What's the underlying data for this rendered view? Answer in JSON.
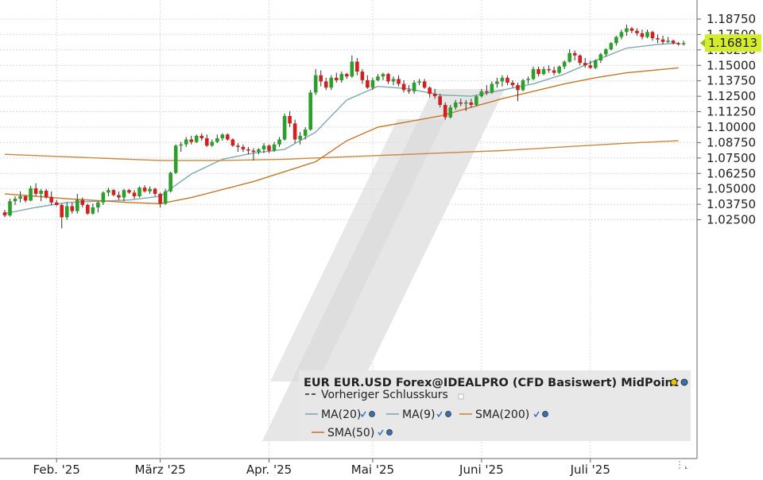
{
  "chart_data": {
    "type": "candlestick",
    "title": "",
    "xlabel": "",
    "ylabel": "",
    "grid": true,
    "legend_placement": "bottom-right",
    "ylim": [
      1.0175,
      1.1925
    ],
    "y_ticks": [
      "1.18750",
      "1.17500",
      "1.16250",
      "1.15000",
      "1.13750",
      "1.12500",
      "1.11250",
      "1.10000",
      "1.08750",
      "1.07500",
      "1.06250",
      "1.05000",
      "1.03750",
      "1.02500"
    ],
    "x_ticks": [
      "Feb. '25",
      "März '25",
      "Apr. '25",
      "Mai '25",
      "Juni '25",
      "Juli '25"
    ],
    "x_tick_bar_index": [
      10,
      30,
      51,
      71,
      92,
      113
    ],
    "last_price_label": "1.16813",
    "legend": {
      "header": "EUR EUR.USD Forex@IDEALPRO (CFD Basiswert) MidPoint",
      "items": [
        "Vorheriger Schlusskurs",
        "MA(20)",
        "MA(9)",
        "SMA(200)",
        "SMA(50)"
      ]
    },
    "ohlc": [
      [
        1.031,
        1.033,
        1.027,
        1.0285
      ],
      [
        1.0285,
        1.042,
        1.0275,
        1.04
      ],
      [
        1.04,
        1.044,
        1.037,
        1.042
      ],
      [
        1.042,
        1.048,
        1.039,
        1.044
      ],
      [
        1.044,
        1.045,
        1.039,
        1.0405
      ],
      [
        1.0405,
        1.0525,
        1.04,
        1.0505
      ],
      [
        1.0505,
        1.0545,
        1.044,
        1.046
      ],
      [
        1.046,
        1.05,
        1.04,
        1.0485
      ],
      [
        1.0485,
        1.05,
        1.042,
        1.0435
      ],
      [
        1.0435,
        1.048,
        1.037,
        1.039
      ],
      [
        1.039,
        1.041,
        1.036,
        1.037
      ],
      [
        1.037,
        1.038,
        1.018,
        1.027
      ],
      [
        1.027,
        1.039,
        1.025,
        1.036
      ],
      [
        1.036,
        1.039,
        1.03,
        1.032
      ],
      [
        1.032,
        1.046,
        1.03,
        1.041
      ],
      [
        1.041,
        1.043,
        1.035,
        1.037
      ],
      [
        1.037,
        1.038,
        1.029,
        1.03
      ],
      [
        1.03,
        1.038,
        1.029,
        1.035
      ],
      [
        1.035,
        1.04,
        1.031,
        1.039
      ],
      [
        1.039,
        1.048,
        1.037,
        1.047
      ],
      [
        1.047,
        1.051,
        1.044,
        1.049
      ],
      [
        1.049,
        1.05,
        1.044,
        1.045
      ],
      [
        1.045,
        1.048,
        1.041,
        1.043
      ],
      [
        1.043,
        1.05,
        1.04,
        1.049
      ],
      [
        1.049,
        1.05,
        1.046,
        1.047
      ],
      [
        1.047,
        1.049,
        1.042,
        1.044
      ],
      [
        1.044,
        1.052,
        1.043,
        1.051
      ],
      [
        1.051,
        1.053,
        1.047,
        1.048
      ],
      [
        1.048,
        1.052,
        1.046,
        1.05
      ],
      [
        1.05,
        1.051,
        1.044,
        1.046
      ],
      [
        1.046,
        1.047,
        1.035,
        1.038
      ],
      [
        1.038,
        1.05,
        1.037,
        1.048
      ],
      [
        1.048,
        1.064,
        1.047,
        1.063
      ],
      [
        1.063,
        1.086,
        1.062,
        1.085
      ],
      [
        1.085,
        1.088,
        1.08,
        1.086
      ],
      [
        1.086,
        1.092,
        1.084,
        1.09
      ],
      [
        1.09,
        1.093,
        1.086,
        1.088
      ],
      [
        1.088,
        1.094,
        1.087,
        1.093
      ],
      [
        1.093,
        1.095,
        1.089,
        1.091
      ],
      [
        1.091,
        1.094,
        1.084,
        1.085
      ],
      [
        1.085,
        1.09,
        1.084,
        1.088
      ],
      [
        1.088,
        1.094,
        1.087,
        1.091
      ],
      [
        1.091,
        1.095,
        1.089,
        1.094
      ],
      [
        1.094,
        1.095,
        1.089,
        1.09
      ],
      [
        1.09,
        1.091,
        1.084,
        1.085
      ],
      [
        1.085,
        1.087,
        1.08,
        1.084
      ],
      [
        1.084,
        1.086,
        1.08,
        1.082
      ],
      [
        1.082,
        1.084,
        1.078,
        1.081
      ],
      [
        1.081,
        1.083,
        1.073,
        1.08
      ],
      [
        1.08,
        1.083,
        1.078,
        1.082
      ],
      [
        1.082,
        1.087,
        1.079,
        1.085
      ],
      [
        1.085,
        1.086,
        1.079,
        1.081
      ],
      [
        1.081,
        1.088,
        1.08,
        1.086
      ],
      [
        1.086,
        1.092,
        1.084,
        1.09
      ],
      [
        1.09,
        1.111,
        1.089,
        1.109
      ],
      [
        1.109,
        1.113,
        1.1,
        1.103
      ],
      [
        1.103,
        1.106,
        1.087,
        1.09
      ],
      [
        1.09,
        1.096,
        1.086,
        1.093
      ],
      [
        1.093,
        1.1,
        1.09,
        1.098
      ],
      [
        1.098,
        1.13,
        1.097,
        1.128
      ],
      [
        1.128,
        1.147,
        1.126,
        1.142
      ],
      [
        1.142,
        1.146,
        1.133,
        1.137
      ],
      [
        1.137,
        1.14,
        1.13,
        1.132
      ],
      [
        1.132,
        1.142,
        1.13,
        1.14
      ],
      [
        1.14,
        1.144,
        1.136,
        1.138
      ],
      [
        1.138,
        1.145,
        1.136,
        1.143
      ],
      [
        1.143,
        1.144,
        1.139,
        1.141
      ],
      [
        1.141,
        1.158,
        1.14,
        1.153
      ],
      [
        1.153,
        1.156,
        1.142,
        1.145
      ],
      [
        1.145,
        1.147,
        1.135,
        1.138
      ],
      [
        1.138,
        1.142,
        1.131,
        1.132
      ],
      [
        1.132,
        1.14,
        1.13,
        1.138
      ],
      [
        1.138,
        1.143,
        1.137,
        1.141
      ],
      [
        1.141,
        1.144,
        1.138,
        1.143
      ],
      [
        1.143,
        1.144,
        1.135,
        1.137
      ],
      [
        1.137,
        1.141,
        1.134,
        1.139
      ],
      [
        1.139,
        1.142,
        1.133,
        1.135
      ],
      [
        1.135,
        1.138,
        1.128,
        1.13
      ],
      [
        1.13,
        1.134,
        1.127,
        1.129
      ],
      [
        1.129,
        1.138,
        1.127,
        1.136
      ],
      [
        1.136,
        1.139,
        1.134,
        1.137
      ],
      [
        1.137,
        1.139,
        1.131,
        1.132
      ],
      [
        1.132,
        1.133,
        1.124,
        1.127
      ],
      [
        1.127,
        1.131,
        1.123,
        1.125
      ],
      [
        1.125,
        1.127,
        1.116,
        1.118
      ],
      [
        1.118,
        1.12,
        1.106,
        1.108
      ],
      [
        1.108,
        1.118,
        1.107,
        1.116
      ],
      [
        1.116,
        1.122,
        1.114,
        1.12
      ],
      [
        1.12,
        1.123,
        1.117,
        1.119
      ],
      [
        1.119,
        1.122,
        1.113,
        1.12
      ],
      [
        1.12,
        1.123,
        1.116,
        1.118
      ],
      [
        1.118,
        1.126,
        1.117,
        1.125
      ],
      [
        1.125,
        1.131,
        1.124,
        1.129
      ],
      [
        1.129,
        1.134,
        1.126,
        1.128
      ],
      [
        1.128,
        1.137,
        1.127,
        1.135
      ],
      [
        1.135,
        1.14,
        1.132,
        1.137
      ],
      [
        1.137,
        1.142,
        1.133,
        1.14
      ],
      [
        1.14,
        1.142,
        1.134,
        1.136
      ],
      [
        1.136,
        1.138,
        1.132,
        1.134
      ],
      [
        1.134,
        1.136,
        1.121,
        1.13
      ],
      [
        1.13,
        1.139,
        1.129,
        1.138
      ],
      [
        1.138,
        1.141,
        1.135,
        1.139
      ],
      [
        1.139,
        1.149,
        1.138,
        1.147
      ],
      [
        1.147,
        1.149,
        1.141,
        1.143
      ],
      [
        1.143,
        1.149,
        1.142,
        1.147
      ],
      [
        1.147,
        1.15,
        1.144,
        1.146
      ],
      [
        1.146,
        1.149,
        1.142,
        1.144
      ],
      [
        1.144,
        1.15,
        1.143,
        1.149
      ],
      [
        1.149,
        1.154,
        1.147,
        1.153
      ],
      [
        1.153,
        1.163,
        1.152,
        1.16
      ],
      [
        1.16,
        1.162,
        1.154,
        1.158
      ],
      [
        1.158,
        1.159,
        1.15,
        1.152
      ],
      [
        1.152,
        1.156,
        1.148,
        1.15
      ],
      [
        1.15,
        1.154,
        1.147,
        1.148
      ],
      [
        1.148,
        1.155,
        1.147,
        1.154
      ],
      [
        1.154,
        1.16,
        1.152,
        1.159
      ],
      [
        1.159,
        1.164,
        1.157,
        1.163
      ],
      [
        1.163,
        1.169,
        1.162,
        1.168
      ],
      [
        1.168,
        1.174,
        1.166,
        1.173
      ],
      [
        1.173,
        1.179,
        1.171,
        1.177
      ],
      [
        1.177,
        1.183,
        1.174,
        1.18
      ],
      [
        1.18,
        1.181,
        1.176,
        1.178
      ],
      [
        1.178,
        1.18,
        1.174,
        1.176
      ],
      [
        1.176,
        1.179,
        1.171,
        1.173
      ],
      [
        1.173,
        1.179,
        1.172,
        1.177
      ],
      [
        1.177,
        1.178,
        1.17,
        1.172
      ],
      [
        1.172,
        1.175,
        1.168,
        1.171
      ],
      [
        1.171,
        1.174,
        1.167,
        1.169
      ],
      [
        1.169,
        1.173,
        1.168,
        1.17
      ],
      [
        1.17,
        1.171,
        1.167,
        1.168
      ],
      [
        1.168,
        1.169,
        1.166,
        1.167
      ],
      [
        1.167,
        1.17,
        1.166,
        1.168
      ]
    ],
    "series": [
      {
        "name": "MA(20)",
        "color": "#7fa9ae",
        "points": [
          [
            0,
            1.03
          ],
          [
            6,
            1.035
          ],
          [
            12,
            1.039
          ],
          [
            18,
            1.04
          ],
          [
            24,
            1.041
          ],
          [
            30,
            1.044
          ],
          [
            36,
            1.062
          ],
          [
            42,
            1.074
          ],
          [
            48,
            1.079
          ],
          [
            54,
            1.082
          ],
          [
            60,
            1.096
          ],
          [
            66,
            1.122
          ],
          [
            72,
            1.133
          ],
          [
            78,
            1.131
          ],
          [
            84,
            1.126
          ],
          [
            90,
            1.125
          ],
          [
            96,
            1.13
          ],
          [
            102,
            1.135
          ],
          [
            108,
            1.143
          ],
          [
            114,
            1.154
          ],
          [
            120,
            1.164
          ],
          [
            126,
            1.167
          ],
          [
            130,
            1.168
          ]
        ]
      },
      {
        "name": "SMA(200)",
        "color": "#c8893e",
        "points": [
          [
            0,
            1.078
          ],
          [
            12,
            1.076
          ],
          [
            24,
            1.074
          ],
          [
            30,
            1.073
          ],
          [
            42,
            1.073
          ],
          [
            54,
            1.074
          ],
          [
            60,
            1.075
          ],
          [
            72,
            1.077
          ],
          [
            84,
            1.079
          ],
          [
            96,
            1.081
          ],
          [
            108,
            1.084
          ],
          [
            120,
            1.087
          ],
          [
            130,
            1.089
          ]
        ]
      },
      {
        "name": "SMA(50)",
        "color": "#c47825",
        "points": [
          [
            0,
            1.046
          ],
          [
            12,
            1.042
          ],
          [
            24,
            1.039
          ],
          [
            30,
            1.038
          ],
          [
            36,
            1.043
          ],
          [
            48,
            1.056
          ],
          [
            60,
            1.072
          ],
          [
            66,
            1.089
          ],
          [
            72,
            1.1
          ],
          [
            84,
            1.109
          ],
          [
            90,
            1.116
          ],
          [
            96,
            1.123
          ],
          [
            102,
            1.129
          ],
          [
            108,
            1.135
          ],
          [
            114,
            1.14
          ],
          [
            120,
            1.144
          ],
          [
            130,
            1.148
          ]
        ]
      }
    ]
  }
}
